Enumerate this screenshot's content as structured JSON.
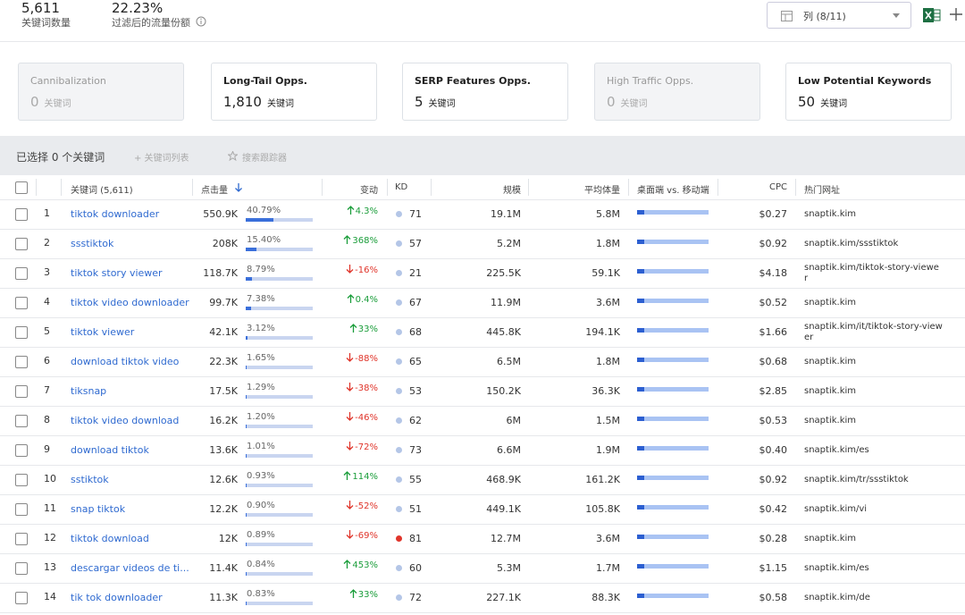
{
  "header": {
    "keyword_count": "5,611",
    "keyword_count_label": "关键词数量",
    "traffic_share": "22.23%",
    "traffic_share_label": "过滤后的流量份额",
    "columns_button": "列 (8/11)"
  },
  "cards": [
    {
      "title": "Cannibalization",
      "value": "0",
      "unit": "关键词",
      "active": false
    },
    {
      "title": "Long-Tail Opps.",
      "value": "1,810",
      "unit": "关键词",
      "active": true
    },
    {
      "title": "SERP Features Opps.",
      "value": "5",
      "unit": "关键词",
      "active": true
    },
    {
      "title": "High Traffic Opps.",
      "value": "0",
      "unit": "关键词",
      "active": false
    },
    {
      "title": "Low Potential Keywords",
      "value": "50",
      "unit": "关键词",
      "active": true
    }
  ],
  "toolbar": {
    "selected": "已选择 0 个关键词",
    "add_list": "+ 关键词列表",
    "tracker": "搜索跟踪器"
  },
  "table": {
    "columns": [
      "关键词 (5,611)",
      "点击量",
      "变动",
      "KD",
      "规模",
      "平均体量",
      "桌面端 vs. 移动端",
      "CPC",
      "热门网址"
    ],
    "rows": [
      [
        "1",
        "tiktok downloader",
        "550.9K",
        "40.79%",
        "4.3%",
        "71",
        "19.1M",
        "5.8M",
        "$0.27",
        "snaptik.kim"
      ],
      [
        "2",
        "ssstiktok",
        "208K",
        "15.40%",
        "368%",
        "57",
        "5.2M",
        "1.8M",
        "$0.92",
        "snaptik.kim/ssstiktok"
      ],
      [
        "3",
        "tiktok story viewer",
        "118.7K",
        "8.79%",
        "-16%",
        "21",
        "225.5K",
        "59.1K",
        "$4.18",
        "snaptik.kim/tiktok-story-viewer"
      ],
      [
        "4",
        "tiktok video downloader",
        "99.7K",
        "7.38%",
        "0.4%",
        "67",
        "11.9M",
        "3.6M",
        "$0.52",
        "snaptik.kim"
      ],
      [
        "5",
        "tiktok viewer",
        "42.1K",
        "3.12%",
        "33%",
        "68",
        "445.8K",
        "194.1K",
        "$1.66",
        "snaptik.kim/it/tiktok-story-viewer"
      ],
      [
        "6",
        "download tiktok video",
        "22.3K",
        "1.65%",
        "-88%",
        "65",
        "6.5M",
        "1.8M",
        "$0.68",
        "snaptik.kim"
      ],
      [
        "7",
        "tiksnap",
        "17.5K",
        "1.29%",
        "-38%",
        "53",
        "150.2K",
        "36.3K",
        "$2.85",
        "snaptik.kim"
      ],
      [
        "8",
        "tiktok video download",
        "16.2K",
        "1.20%",
        "-46%",
        "62",
        "6M",
        "1.5M",
        "$0.53",
        "snaptik.kim"
      ],
      [
        "9",
        "download tiktok",
        "13.6K",
        "1.01%",
        "-72%",
        "73",
        "6.6M",
        "1.9M",
        "$0.40",
        "snaptik.kim/es"
      ],
      [
        "10",
        "sstiktok",
        "12.6K",
        "0.93%",
        "114%",
        "55",
        "468.9K",
        "161.2K",
        "$0.92",
        "snaptik.kim/tr/ssstiktok"
      ],
      [
        "11",
        "snap tiktok",
        "12.2K",
        "0.90%",
        "-52%",
        "51",
        "449.1K",
        "105.8K",
        "$0.42",
        "snaptik.kim/vi"
      ],
      [
        "12",
        "tiktok download",
        "12K",
        "0.89%",
        "-69%",
        "81",
        "12.7M",
        "3.6M",
        "$0.28",
        "snaptik.kim"
      ],
      [
        "13",
        "descargar videos de ti...",
        "11.4K",
        "0.84%",
        "453%",
        "60",
        "5.3M",
        "1.7M",
        "$1.15",
        "snaptik.kim/es"
      ],
      [
        "14",
        "tik tok downloader",
        "11.3K",
        "0.83%",
        "33%",
        "72",
        "227.1K",
        "88.3K",
        "$0.58",
        "snaptik.kim/de"
      ]
    ]
  }
}
